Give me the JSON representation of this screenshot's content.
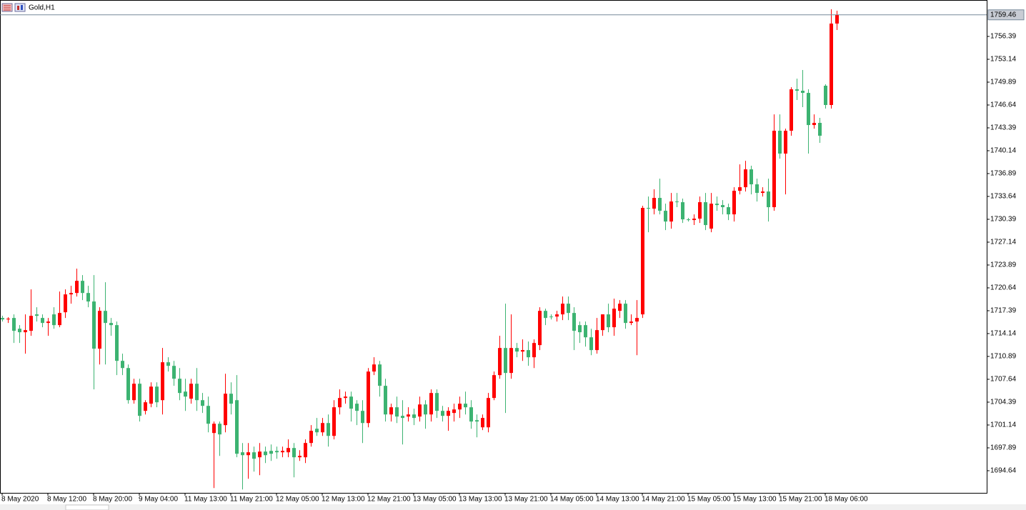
{
  "chart_data": {
    "type": "candlestick",
    "title": "Gold,H1",
    "categories": [
      "8 May 2020",
      null,
      null,
      null,
      null,
      null,
      null,
      null,
      "8 May 12:00",
      null,
      null,
      null,
      null,
      null,
      null,
      null,
      "8 May 20:00",
      null,
      null,
      null,
      null,
      null,
      null,
      null,
      "9 May 04:00",
      null,
      null,
      null,
      null,
      null,
      null,
      null,
      "11 May 13:00",
      null,
      null,
      null,
      null,
      null,
      null,
      null,
      "11 May 21:00",
      null,
      null,
      null,
      null,
      null,
      null,
      null,
      "12 May 05:00",
      null,
      null,
      null,
      null,
      null,
      null,
      null,
      "12 May 13:00",
      null,
      null,
      null,
      null,
      null,
      null,
      null,
      "12 May 21:00",
      null,
      null,
      null,
      null,
      null,
      null,
      null,
      "13 May 05:00",
      null,
      null,
      null,
      null,
      null,
      null,
      null,
      "13 May 13:00",
      null,
      null,
      null,
      null,
      null,
      null,
      null,
      "13 May 21:00",
      null,
      null,
      null,
      null,
      null,
      null,
      null,
      "14 May 05:00",
      null,
      null,
      null,
      null,
      null,
      null,
      null,
      "14 May 13:00",
      null,
      null,
      null,
      null,
      null,
      null,
      null,
      "14 May 21:00",
      null,
      null,
      null,
      null,
      null,
      null,
      null,
      "15 May 05:00",
      null,
      null,
      null,
      null,
      null,
      null,
      null,
      "15 May 13:00",
      null,
      null,
      null,
      null,
      null,
      null,
      null,
      "15 May 21:00",
      null,
      null,
      null,
      null,
      null,
      null,
      null,
      "18 May 06:00",
      null,
      null
    ],
    "open": [
      1716.36,
      1716.15,
      1716.36,
      1714.83,
      1714.33,
      1714.53,
      1716.87,
      1716.36,
      1715.65,
      1716.87,
      1715.34,
      1717.17,
      1719.71,
      1719.91,
      1721.64,
      1719.91,
      1718.7,
      1711.99,
      1717.37,
      1715.65,
      1715.34,
      1710.26,
      1709.24,
      1704.67,
      1707.01,
      1703.15,
      1704.17,
      1706.6,
      1704.67,
      1710.06,
      1709.55,
      1707.72,
      1705.89,
      1704.88,
      1707.01,
      1704.67,
      1703.86,
      1700.0,
      1701.32,
      1701.12,
      1705.59,
      1704.67,
      1697.26,
      1696.85,
      1697.26,
      1696.55,
      1697.36,
      1697.46,
      1697.46,
      1697.26,
      1697.26,
      1697.87,
      1696.55,
      1696.55,
      1698.58,
      1700.61,
      1700.1,
      1701.42,
      1699.59,
      1703.66,
      1704.98,
      1705.18,
      1704.17,
      1703.15,
      1701.42,
      1708.74,
      1709.75,
      1706.71,
      1702.64,
      1703.66,
      1702.44,
      1702.34,
      1702.64,
      1702.34,
      1704.06,
      1702.64,
      1705.69,
      1703.15,
      1702.44,
      1702.85,
      1703.35,
      1704.17,
      1703.66,
      1701.83,
      1700.81,
      1700.81,
      1704.98,
      1708.23,
      1712.09,
      1708.54,
      1712.09,
      1711.58,
      1711.79,
      1710.77,
      1712.5,
      1717.37,
      1716.56,
      1716.56,
      1716.87,
      1718.39,
      1717.07,
      1715.34,
      1715.34,
      1713.61,
      1711.79,
      1714.63,
      1716.87,
      1715.04,
      1717.37,
      1718.39,
      1715.65,
      1715.85,
      1716.87,
      1732.01,
      1731.9,
      1733.43,
      1731.6,
      1730.07,
      1732.92,
      1732.82,
      1730.38,
      1730.28,
      1730.48,
      1732.82,
      1729.06,
      1732.61,
      1732.41,
      1732.11,
      1731.09,
      1734.44,
      1734.95,
      1737.49,
      1735.36,
      1734.14,
      1734.34,
      1732.11,
      1742.98,
      1739.73,
      1742.98,
      1748.87,
      1748.67,
      1748.36,
      1743.79,
      1744.1,
      1749.38,
      1746.64,
      1758.22
    ],
    "high": [
      1716.66,
      1716.46,
      1716.87,
      1715.34,
      1716.87,
      1720.42,
      1717.88,
      1716.87,
      1716.36,
      1717.88,
      1720.12,
      1720.42,
      1720.93,
      1723.37,
      1722.45,
      1720.93,
      1722.45,
      1717.88,
      1721.44,
      1716.36,
      1715.85,
      1711.28,
      1709.75,
      1707.72,
      1707.72,
      1704.67,
      1707.21,
      1707.21,
      1712.09,
      1710.77,
      1710.26,
      1709.24,
      1707.72,
      1707.72,
      1709.24,
      1705.69,
      1705.18,
      1701.63,
      1701.63,
      1708.43,
      1707.21,
      1708.23,
      1698.58,
      1698.58,
      1698.07,
      1698.58,
      1698.07,
      1698.37,
      1698.07,
      1698.07,
      1699.09,
      1698.58,
      1697.56,
      1699.09,
      1701.12,
      1702.14,
      1702.14,
      1702.64,
      1704.67,
      1706.2,
      1705.89,
      1705.89,
      1704.67,
      1704.67,
      1709.24,
      1710.77,
      1710.26,
      1707.72,
      1704.17,
      1705.18,
      1704.67,
      1703.66,
      1703.46,
      1705.18,
      1704.67,
      1706.2,
      1706.2,
      1703.86,
      1703.66,
      1704.17,
      1705.18,
      1705.89,
      1704.67,
      1702.64,
      1702.64,
      1705.69,
      1708.74,
      1713.82,
      1718.39,
      1716.87,
      1712.8,
      1713.31,
      1713.01,
      1713.31,
      1717.88,
      1717.68,
      1716.87,
      1717.37,
      1719.41,
      1719.41,
      1717.88,
      1715.85,
      1715.85,
      1714.83,
      1716.36,
      1716.87,
      1718.39,
      1719.1,
      1718.9,
      1718.9,
      1716.87,
      1718.9,
      1732.31,
      1733.63,
      1734.65,
      1736.17,
      1732.61,
      1734.14,
      1734.14,
      1733.33,
      1730.58,
      1731.09,
      1733.63,
      1734.14,
      1734.14,
      1733.63,
      1733.12,
      1732.61,
      1734.95,
      1738.2,
      1738.71,
      1738.0,
      1736.17,
      1734.95,
      1736.17,
      1745.31,
      1745.31,
      1743.28,
      1749.17,
      1750.39,
      1751.61,
      1748.87,
      1745.31,
      1744.81,
      1749.58,
      1760.25,
      1760.05
    ],
    "low": [
      1715.85,
      1715.65,
      1712.8,
      1712.8,
      1711.28,
      1713.82,
      1715.85,
      1715.04,
      1713.82,
      1714.83,
      1715.04,
      1716.36,
      1718.39,
      1719.41,
      1718.9,
      1717.88,
      1706.2,
      1709.75,
      1709.75,
      1713.82,
      1708.23,
      1708.23,
      1704.17,
      1704.17,
      1701.63,
      1702.64,
      1703.66,
      1703.66,
      1702.64,
      1708.74,
      1706.71,
      1704.67,
      1703.15,
      1704.17,
      1703.15,
      1702.85,
      1700.1,
      1692.18,
      1696.75,
      1700.1,
      1702.64,
      1696.55,
      1691.97,
      1693.5,
      1694.51,
      1694.01,
      1695.73,
      1696.04,
      1696.34,
      1696.55,
      1696.55,
      1693.7,
      1696.04,
      1695.73,
      1698.07,
      1699.59,
      1699.59,
      1698.07,
      1699.09,
      1702.64,
      1704.17,
      1701.63,
      1701.12,
      1698.58,
      1700.81,
      1708.23,
      1705.18,
      1701.63,
      1701.63,
      1701.42,
      1698.37,
      1701.63,
      1701.12,
      1701.63,
      1700.61,
      1701.63,
      1702.14,
      1701.63,
      1700.31,
      1701.63,
      1702.14,
      1702.64,
      1700.61,
      1699.39,
      1700.41,
      1700.1,
      1704.67,
      1707.72,
      1702.85,
      1707.72,
      1710.77,
      1710.26,
      1709.55,
      1709.24,
      1711.79,
      1715.34,
      1716.15,
      1715.85,
      1716.05,
      1716.05,
      1711.79,
      1712.8,
      1712.29,
      1711.07,
      1711.28,
      1713.82,
      1714.33,
      1713.82,
      1716.36,
      1714.83,
      1715.34,
      1711.07,
      1716.36,
      1728.55,
      1731.09,
      1731.09,
      1728.85,
      1729.06,
      1732.11,
      1729.87,
      1730.07,
      1729.57,
      1729.87,
      1728.85,
      1728.55,
      1731.6,
      1731.09,
      1730.28,
      1730.07,
      1733.93,
      1734.34,
      1733.93,
      1732.92,
      1733.63,
      1730.07,
      1731.6,
      1739.01,
      1733.93,
      1742.27,
      1747.35,
      1746.33,
      1739.73,
      1743.28,
      1741.25,
      1746.13,
      1746.13,
      1757.3
    ],
    "close": [
      1716.15,
      1716.26,
      1714.53,
      1714.33,
      1714.63,
      1716.66,
      1716.66,
      1715.65,
      1715.85,
      1715.34,
      1717.07,
      1719.71,
      1719.91,
      1721.64,
      1719.91,
      1718.7,
      1711.99,
      1717.37,
      1715.65,
      1715.34,
      1710.26,
      1709.24,
      1704.67,
      1707.01,
      1702.44,
      1704.37,
      1706.6,
      1704.37,
      1710.06,
      1709.55,
      1707.72,
      1705.69,
      1705.18,
      1707.01,
      1704.67,
      1703.86,
      1701.32,
      1701.32,
      1699.8,
      1705.59,
      1704.17,
      1697.05,
      1696.85,
      1697.26,
      1696.34,
      1697.36,
      1696.85,
      1697.05,
      1697.26,
      1697.46,
      1697.87,
      1696.55,
      1696.75,
      1698.58,
      1700.31,
      1700.1,
      1701.42,
      1699.59,
      1703.66,
      1704.98,
      1705.18,
      1703.46,
      1703.15,
      1701.42,
      1708.74,
      1709.75,
      1706.71,
      1702.64,
      1703.66,
      1702.34,
      1702.14,
      1702.64,
      1702.14,
      1704.06,
      1702.64,
      1705.69,
      1703.15,
      1702.44,
      1703.15,
      1703.35,
      1704.17,
      1703.66,
      1701.63,
      1701.63,
      1702.14,
      1704.98,
      1708.23,
      1712.09,
      1708.54,
      1712.09,
      1711.58,
      1711.79,
      1710.77,
      1712.8,
      1717.37,
      1716.36,
      1716.46,
      1716.87,
      1718.39,
      1717.07,
      1714.53,
      1714.33,
      1713.61,
      1711.79,
      1714.63,
      1716.87,
      1715.04,
      1717.68,
      1718.39,
      1715.65,
      1715.85,
      1716.36,
      1732.01,
      1731.9,
      1733.43,
      1731.6,
      1730.07,
      1732.92,
      1732.82,
      1730.38,
      1730.28,
      1730.48,
      1732.82,
      1729.57,
      1732.61,
      1732.41,
      1732.11,
      1731.09,
      1734.44,
      1734.95,
      1737.49,
      1735.36,
      1734.14,
      1734.34,
      1732.11,
      1742.98,
      1739.73,
      1742.98,
      1748.87,
      1748.67,
      1748.36,
      1743.79,
      1744.1,
      1742.27,
      1746.64,
      1758.22,
      1759.46
    ],
    "up_color": "#ff0000",
    "down_color": "#3cb371",
    "ylim": [
      1691.49,
      1760.35
    ],
    "yticks": [
      1694.64,
      1697.89,
      1701.14,
      1704.39,
      1707.64,
      1710.89,
      1714.14,
      1717.39,
      1720.64,
      1723.89,
      1727.14,
      1730.39,
      1733.64,
      1736.89,
      1740.14,
      1743.39,
      1746.64,
      1749.89,
      1753.14,
      1756.39
    ],
    "current_price": 1759.46,
    "grid": false
  }
}
